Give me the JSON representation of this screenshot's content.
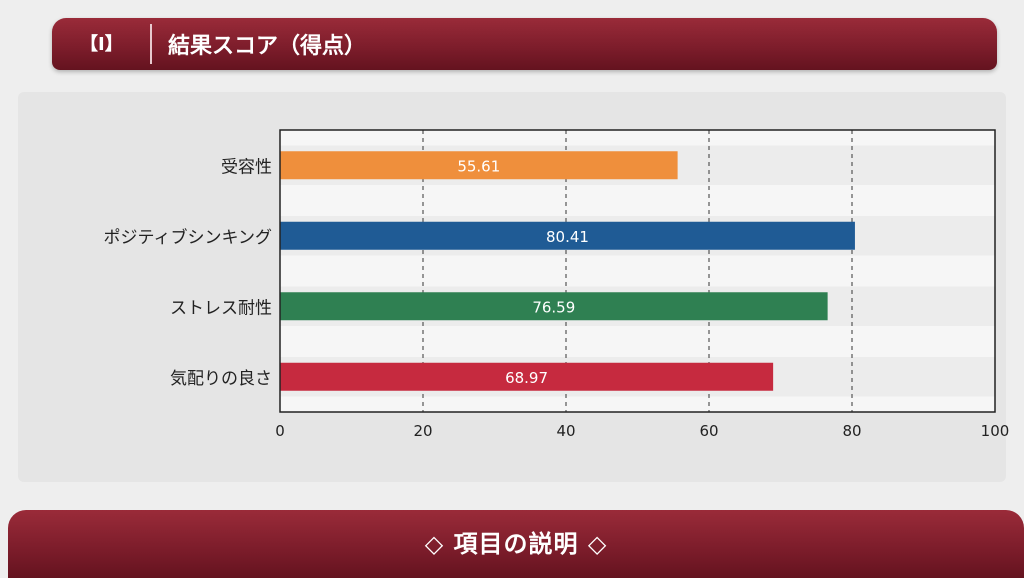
{
  "header": {
    "tag": "【Ⅰ】",
    "title": "結果スコア（得点）"
  },
  "footer": {
    "title": "◇ 項目の説明 ◇"
  },
  "chart_data": {
    "type": "bar",
    "orientation": "horizontal",
    "categories": [
      "受容性",
      "ポジティブシンキング",
      "ストレス耐性",
      "気配りの良さ"
    ],
    "values": [
      55.61,
      80.41,
      76.59,
      68.97
    ],
    "value_labels": [
      "55.61",
      "80.41",
      "76.59",
      "68.97"
    ],
    "colors": [
      "#ef8f3c",
      "#1f5b95",
      "#2f8052",
      "#c62a3f"
    ],
    "xlim": [
      0,
      100
    ],
    "xticks": [
      0,
      20,
      40,
      60,
      80,
      100
    ],
    "xtick_labels": [
      "0",
      "20",
      "40",
      "60",
      "80",
      "100"
    ],
    "grid": "vertical-dashed",
    "legend": "none"
  }
}
